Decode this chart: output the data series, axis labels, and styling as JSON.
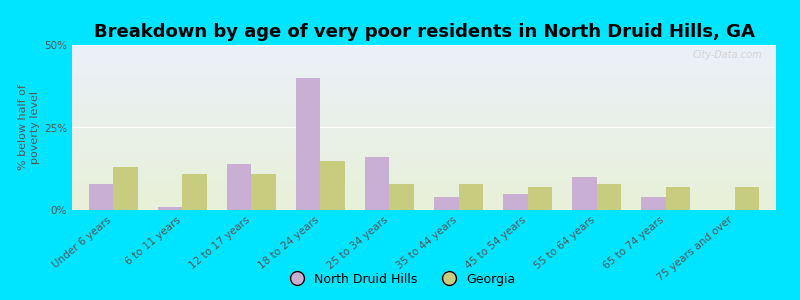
{
  "title": "Breakdown by age of very poor residents in North Druid Hills, GA",
  "ylabel": "% below half of\npoverty level",
  "categories": [
    "Under 6 years",
    "6 to 11 years",
    "12 to 17 years",
    "18 to 24 years",
    "25 to 34 years",
    "35 to 44 years",
    "45 to 54 years",
    "55 to 64 years",
    "65 to 74 years",
    "75 years and over"
  ],
  "ndh_values": [
    8.0,
    1.0,
    14.0,
    40.0,
    16.0,
    4.0,
    5.0,
    10.0,
    4.0,
    0.0
  ],
  "ga_values": [
    13.0,
    11.0,
    11.0,
    15.0,
    8.0,
    8.0,
    7.0,
    8.0,
    7.0,
    7.0
  ],
  "ndh_color": "#c9afd4",
  "ga_color": "#c8cc7e",
  "bg_outer": "#00e5ff",
  "bg_plot_top": "#eaf0f8",
  "bg_plot_bottom": "#e8f0d8",
  "axis_color": "#555555",
  "title_fontsize": 13,
  "label_fontsize": 8,
  "tick_fontsize": 7.5,
  "legend_fontsize": 9,
  "ylim": [
    0,
    50
  ],
  "yticks": [
    0,
    25,
    50
  ],
  "ytick_labels": [
    "0%",
    "25%",
    "50%"
  ],
  "bar_width": 0.35,
  "watermark": "City-Data.com"
}
